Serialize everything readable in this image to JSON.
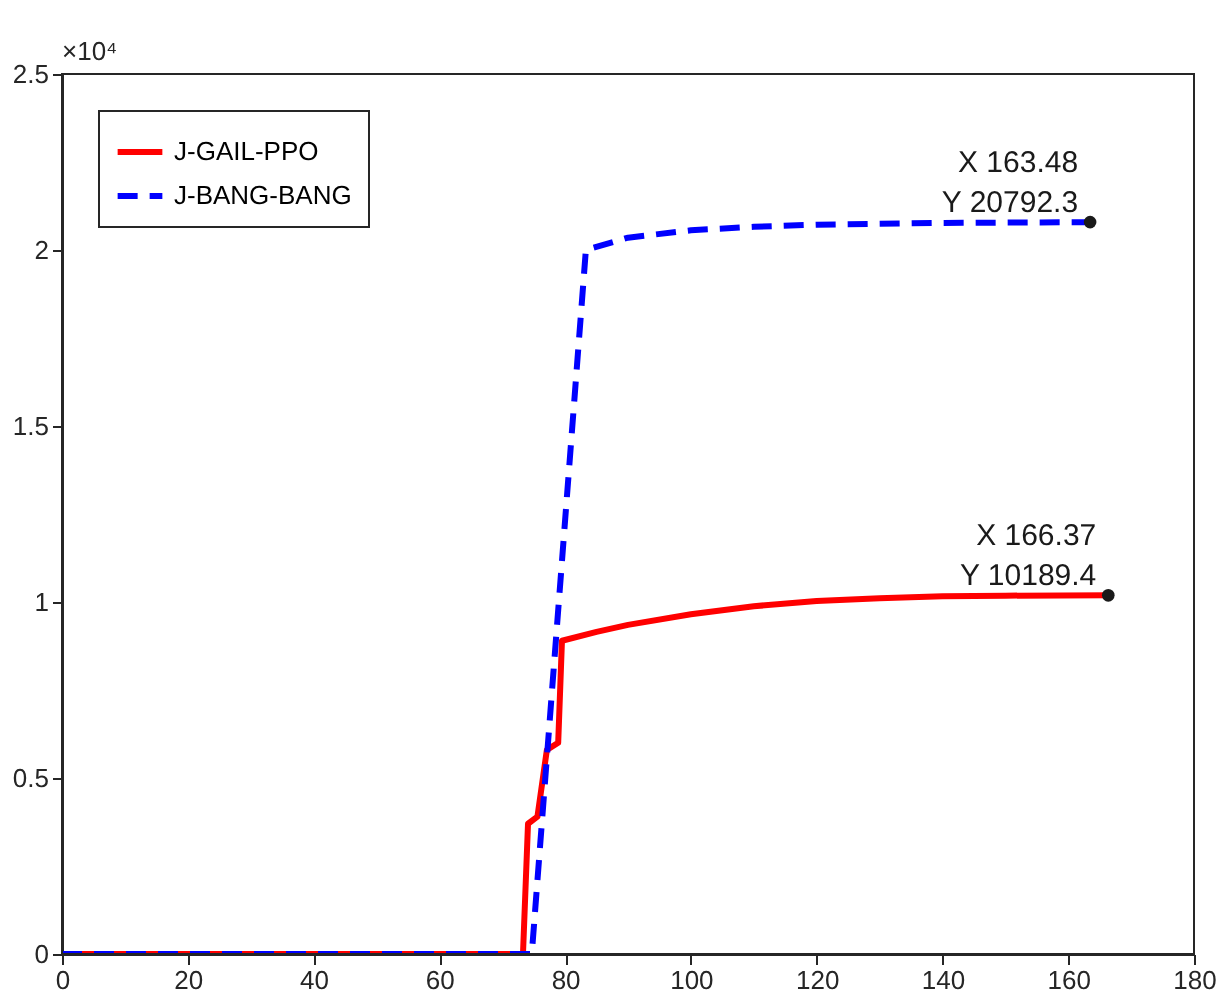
{
  "chart_data": {
    "type": "line",
    "series": [
      {
        "name": "J-GAIL-PPO",
        "color": "#ff0000",
        "line_style": "solid",
        "x": [
          0,
          73.3,
          74.1,
          75.6,
          77.1,
          78.9,
          79.5,
          85,
          90,
          100,
          110,
          120,
          130,
          140,
          150,
          166.37
        ],
        "values": [
          0,
          0,
          0.37,
          0.39,
          0.58,
          0.6,
          0.89,
          0.915,
          0.935,
          0.965,
          0.988,
          1.003,
          1.011,
          1.016,
          1.018,
          1.019
        ]
      },
      {
        "name": "J-BANG-BANG",
        "color": "#0000ff",
        "line_style": "dashed",
        "x": [
          0,
          74.7,
          83.3,
          90,
          100,
          110,
          120,
          140,
          163.48
        ],
        "values": [
          0,
          0,
          2.0,
          2.035,
          2.056,
          2.066,
          2.072,
          2.077,
          2.079
        ]
      }
    ],
    "xlim": [
      0,
      180
    ],
    "xticks": [
      0,
      20,
      40,
      60,
      80,
      100,
      120,
      140,
      160,
      180
    ],
    "ylim": [
      0,
      2.5
    ],
    "yticks": [
      0,
      0.5,
      1,
      1.5,
      2,
      2.5
    ],
    "grid": false,
    "legend": "top left",
    "marker": "none",
    "annotations": [
      "×10⁴",
      {
        "text": "X 163.48\nY 20792.3",
        "x": 163.48,
        "y": 2.07923
      },
      {
        "text": "X 166.37\nY 10189.4",
        "x": 166.37,
        "y": 1.01894
      }
    ]
  }
}
